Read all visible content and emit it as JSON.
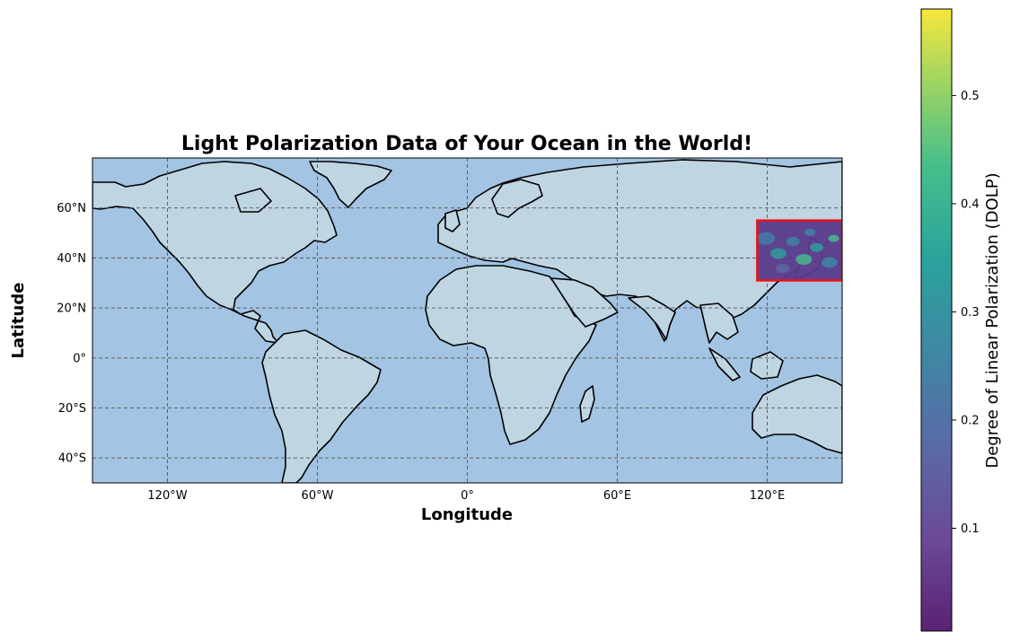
{
  "map": {
    "title": "Light Polarization Data of Your Ocean in the World!",
    "xlabel": "Longitude",
    "ylabel": "Latitude",
    "projection": "PlateCarree",
    "extent": {
      "lon": [
        -150,
        150
      ],
      "lat": [
        -50,
        80
      ]
    },
    "gridlines": "dashed",
    "x_ticks": [
      {
        "value": -120,
        "label": "120°W"
      },
      {
        "value": -60,
        "label": "60°W"
      },
      {
        "value": 0,
        "label": "0°"
      },
      {
        "value": 60,
        "label": "60°E"
      },
      {
        "value": 120,
        "label": "120°E"
      }
    ],
    "y_ticks": [
      {
        "value": 60,
        "label": "60°N"
      },
      {
        "value": 40,
        "label": "40°N"
      },
      {
        "value": 20,
        "label": "20°N"
      },
      {
        "value": 0,
        "label": "0°"
      },
      {
        "value": -20,
        "label": "20°S"
      },
      {
        "value": -40,
        "label": "40°S"
      }
    ],
    "ocean_color": "#a3c4e2",
    "land_color": "#c0d5e2",
    "border_color": "#000000",
    "highlight_box": {
      "lon": [
        116,
        150
      ],
      "lat": [
        31,
        55
      ],
      "color": "#ee1111"
    }
  },
  "colorbar": {
    "label": "Degree of Linear Polarization (DOLP)",
    "colormap": "viridis",
    "range": [
      0.005,
      0.58
    ],
    "ticks": [
      {
        "value": 0.1,
        "label": "0.1"
      },
      {
        "value": 0.2,
        "label": "0.2"
      },
      {
        "value": 0.3,
        "label": "0.3"
      },
      {
        "value": 0.4,
        "label": "0.4"
      },
      {
        "value": 0.5,
        "label": "0.5"
      }
    ]
  }
}
